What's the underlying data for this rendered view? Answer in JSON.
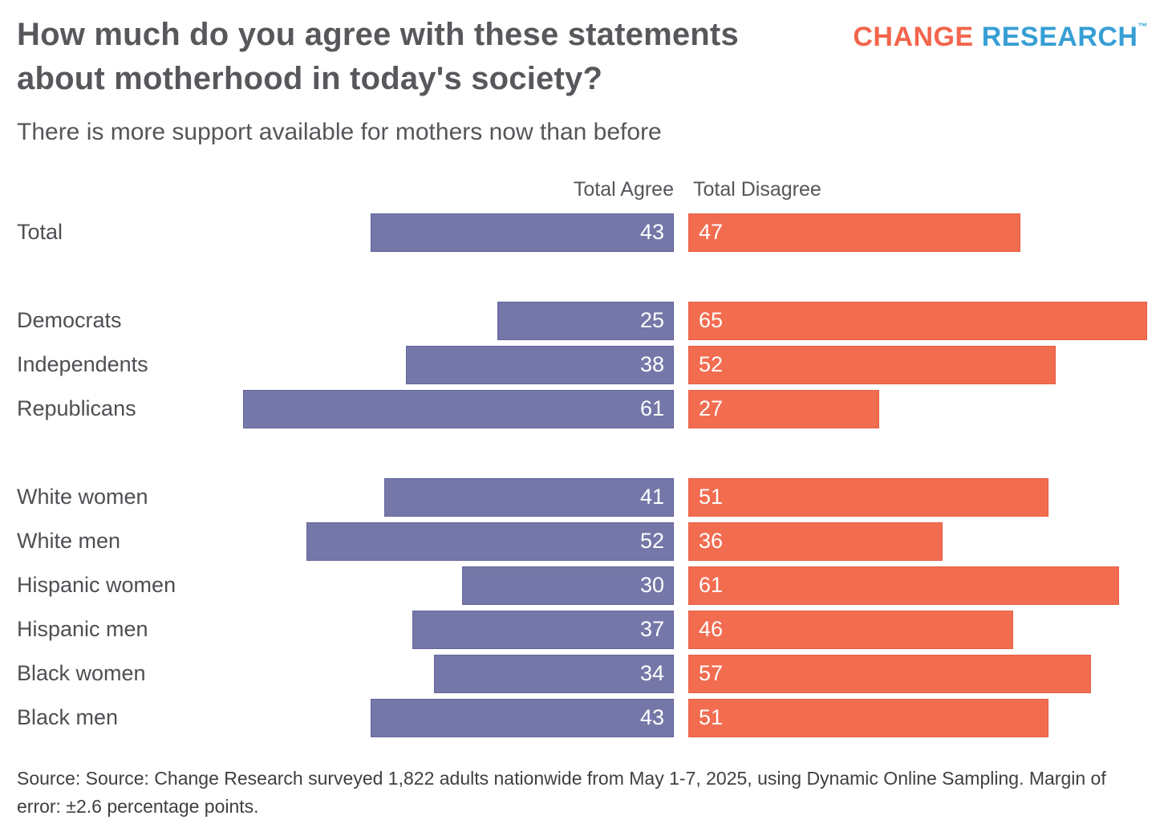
{
  "header": {
    "title": "How much do you agree with these statements about motherhood in today's society?",
    "subtitle": "There is more support available for mothers now than before",
    "logo": {
      "part1": "CHANGE",
      "part2": "RESEARCH",
      "tm": "™",
      "part1_color": "#f2654c",
      "part2_color": "#379fd4"
    }
  },
  "chart_data": {
    "type": "bar",
    "orientation": "horizontal",
    "diverging_layout": "agree bars right-aligned toward center, disagree bars left-aligned from center",
    "value_unit": "percent",
    "xlim": [
      0,
      68
    ],
    "grid": false,
    "series": [
      {
        "name": "Total Agree",
        "color": "#7577a8",
        "border_color": "#63649b"
      },
      {
        "name": "Total Disagree",
        "color": "#f26c50",
        "border_color": "#e45f43"
      }
    ],
    "groups": [
      {
        "rows": [
          {
            "label": "Total",
            "agree": 43,
            "disagree": 47
          }
        ]
      },
      {
        "rows": [
          {
            "label": "Democrats",
            "agree": 25,
            "disagree": 65
          },
          {
            "label": "Independents",
            "agree": 38,
            "disagree": 52
          },
          {
            "label": "Republicans",
            "agree": 61,
            "disagree": 27
          }
        ]
      },
      {
        "rows": [
          {
            "label": "White women",
            "agree": 41,
            "disagree": 51
          },
          {
            "label": "White men",
            "agree": 52,
            "disagree": 36
          },
          {
            "label": "Hispanic women",
            "agree": 30,
            "disagree": 61
          },
          {
            "label": "Hispanic men",
            "agree": 37,
            "disagree": 46
          },
          {
            "label": "Black women",
            "agree": 34,
            "disagree": 57
          },
          {
            "label": "Black men",
            "agree": 43,
            "disagree": 51
          }
        ]
      }
    ],
    "title": "How much do you agree with these statements about motherhood in today's society?",
    "subtitle": "There is more support available for mothers now than before"
  },
  "source": "Source: Source: Change Research surveyed 1,822 adults nationwide from May 1-7, 2025, using Dynamic Online Sampling. Margin of error: ±2.6 percentage points."
}
